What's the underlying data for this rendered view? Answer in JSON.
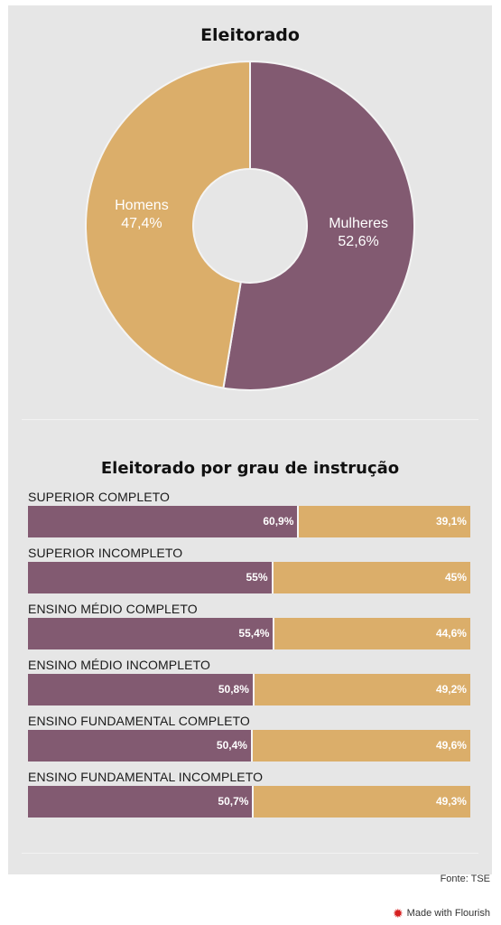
{
  "colors": {
    "feminino": "#825a71",
    "masculino": "#dbae6a",
    "panel": "#e6e6e6"
  },
  "footer": {
    "source": "Fonte: TSE",
    "made_with": "Made with Flourish",
    "flourish_icon": "flourish-burst-icon"
  },
  "chart_data": [
    {
      "type": "pie",
      "title": "Eleitorado",
      "donut": true,
      "slices": [
        {
          "label": "Mulheres",
          "value": 52.6,
          "value_label": "52,6%"
        },
        {
          "label": "Homens",
          "value": 47.4,
          "value_label": "47,4%"
        }
      ]
    },
    {
      "type": "bar",
      "orientation": "horizontal",
      "stacked": "100%",
      "title": "Eleitorado por grau de instrução",
      "categories": [
        "SUPERIOR COMPLETO",
        "SUPERIOR INCOMPLETO",
        "ENSINO MÉDIO COMPLETO",
        "ENSINO MÉDIO INCOMPLETO",
        "ENSINO FUNDAMENTAL COMPLETO",
        "ENSINO FUNDAMENTAL INCOMPLETO"
      ],
      "series": [
        {
          "values": [
            60.9,
            55,
            55.4,
            50.8,
            50.4,
            50.7
          ],
          "labels": [
            "60,9%",
            "55%",
            "55,4%",
            "50,8%",
            "50,4%",
            "50,7%"
          ]
        },
        {
          "values": [
            39.1,
            45,
            44.6,
            49.2,
            49.6,
            49.3
          ],
          "labels": [
            "39,1%",
            "45%",
            "44,6%",
            "49,2%",
            "49,6%",
            "49,3%"
          ]
        }
      ],
      "xlim": [
        0,
        100
      ]
    }
  ]
}
